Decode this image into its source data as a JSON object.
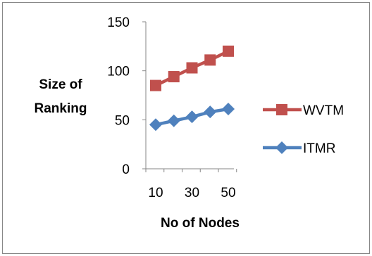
{
  "chart_data": {
    "type": "line",
    "x": [
      10,
      20,
      30,
      40,
      50
    ],
    "x_tick_labels": [
      "10",
      "30",
      "50"
    ],
    "y_tick_labels": [
      "0",
      "50",
      "100",
      "150"
    ],
    "ylim": [
      0,
      150
    ],
    "xlabel": "No of Nodes",
    "ylabel": [
      "Size of",
      "Ranking"
    ],
    "grid": false,
    "legend_position": "right",
    "series": [
      {
        "name": "WVTM",
        "color": "#c0504d",
        "marker": "square",
        "values": [
          85,
          94,
          103,
          111,
          120
        ]
      },
      {
        "name": "ITMR",
        "color": "#4f81bd",
        "marker": "diamond",
        "values": [
          45,
          49,
          53,
          58,
          61
        ]
      }
    ]
  }
}
